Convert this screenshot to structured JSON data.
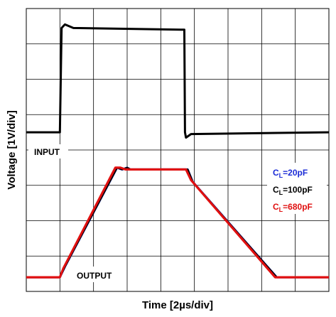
{
  "chart_data": {
    "type": "line",
    "xlabel": "Time [2µs/div]",
    "ylabel": "Voltage [1V/div]",
    "grid": true,
    "x_divisions": 9,
    "y_divisions": 8,
    "xlim": [
      0,
      9
    ],
    "ylim": [
      0,
      8
    ],
    "x_units": "divisions (2µs/div)",
    "y_units": "divisions (1V/div)",
    "annotations": {
      "input": "INPUT",
      "output": "OUTPUT"
    },
    "legend": {
      "placement": "right-middle",
      "entries": [
        {
          "sub": "L",
          "prefix": "C",
          "value": "=20pF",
          "color": "#1a2bd6"
        },
        {
          "sub": "L",
          "prefix": "C",
          "value": "=100pF",
          "color": "#000000"
        },
        {
          "sub": "L",
          "prefix": "C",
          "value": "=680pF",
          "color": "#e01010"
        }
      ]
    },
    "series": [
      {
        "name": "INPUT",
        "color": "#000000",
        "x": [
          0,
          1.0,
          1.05,
          1.15,
          1.4,
          4.7,
          4.72,
          4.75,
          4.9,
          9
        ],
        "y": [
          4.5,
          4.5,
          7.45,
          7.55,
          7.45,
          7.4,
          4.5,
          4.35,
          4.45,
          4.5
        ]
      },
      {
        "name": "C_L=20pF",
        "color": "#1a2bd6",
        "x": [
          0,
          1.0,
          1.15,
          2.7,
          2.85,
          3.0,
          3.1,
          4.8,
          4.95,
          7.45,
          7.6,
          9
        ],
        "y": [
          0.4,
          0.4,
          0.7,
          3.5,
          3.45,
          3.5,
          3.45,
          3.45,
          3.1,
          0.4,
          0.4,
          0.4
        ]
      },
      {
        "name": "C_L=100pF",
        "color": "#000000",
        "x": [
          0,
          1.0,
          1.15,
          2.7,
          2.85,
          3.0,
          3.1,
          4.8,
          4.95,
          7.45,
          7.6,
          9
        ],
        "y": [
          0.4,
          0.4,
          0.7,
          3.5,
          3.45,
          3.5,
          3.45,
          3.45,
          3.1,
          0.4,
          0.4,
          0.4
        ]
      },
      {
        "name": "C_L=680pF",
        "color": "#e01010",
        "x": [
          0,
          1.0,
          1.1,
          2.65,
          2.8,
          2.95,
          3.05,
          4.75,
          4.9,
          7.4,
          7.55,
          9
        ],
        "y": [
          0.4,
          0.4,
          0.65,
          3.5,
          3.5,
          3.45,
          3.45,
          3.45,
          3.15,
          0.4,
          0.4,
          0.4
        ]
      }
    ]
  }
}
